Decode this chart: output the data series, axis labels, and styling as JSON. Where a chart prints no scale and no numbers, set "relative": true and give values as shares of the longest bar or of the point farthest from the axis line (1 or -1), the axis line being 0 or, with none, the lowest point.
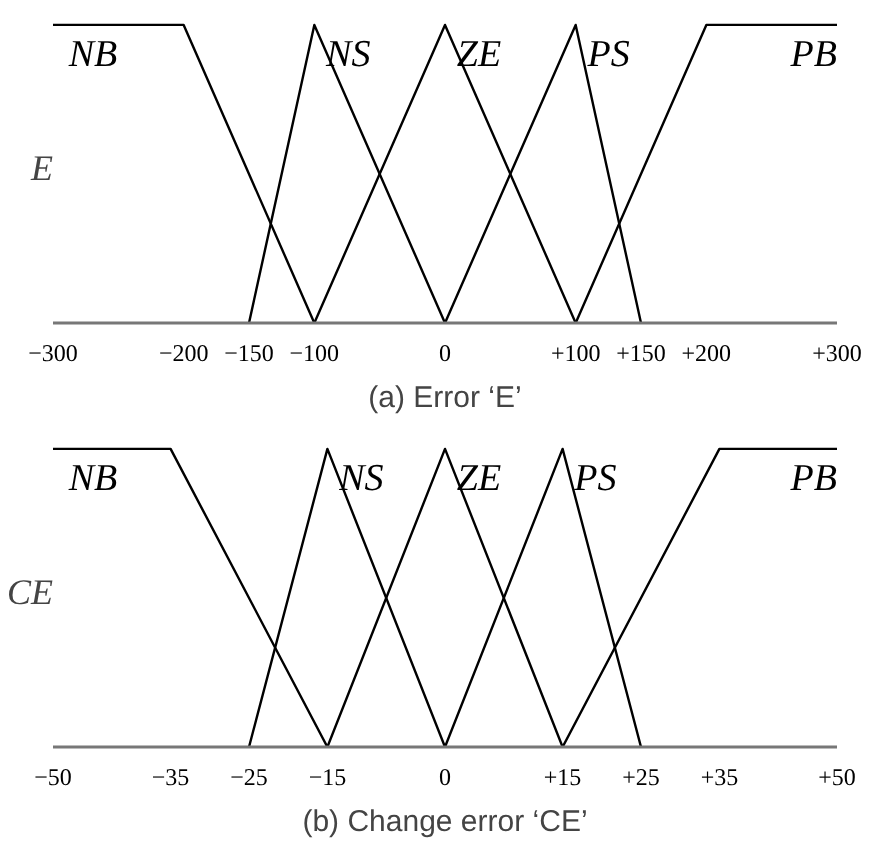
{
  "chart_data": [
    {
      "type": "line",
      "title": "(a) Error ‘E’",
      "ylabel": "E",
      "relative": true,
      "xlim": [
        -300,
        300
      ],
      "xticks": [
        {
          "value": -300,
          "label": "−300"
        },
        {
          "value": -200,
          "label": "−200"
        },
        {
          "value": -150,
          "label": "−150"
        },
        {
          "value": -100,
          "label": "−100"
        },
        0,
        {
          "value": 100,
          "label": "+100"
        },
        {
          "value": 150,
          "label": "+150"
        },
        {
          "value": 200,
          "label": "+200"
        },
        {
          "value": 300,
          "label": "+300"
        }
      ],
      "series": [
        {
          "name": "NB",
          "color": "#000000",
          "x": [
            -300,
            -200,
            -100
          ],
          "values": [
            1,
            1,
            0
          ]
        },
        {
          "name": "NS",
          "color": "#000000",
          "x": [
            -150,
            -100,
            0
          ],
          "values": [
            0,
            1,
            0
          ]
        },
        {
          "name": "ZE",
          "color": "#000000",
          "x": [
            -100,
            0,
            100
          ],
          "values": [
            0,
            1,
            0
          ]
        },
        {
          "name": "PS",
          "color": "#000000",
          "x": [
            0,
            100,
            150
          ],
          "values": [
            0,
            1,
            0
          ]
        },
        {
          "name": "PB",
          "color": "#000000",
          "x": [
            100,
            200,
            300
          ],
          "values": [
            0,
            1,
            1
          ]
        }
      ]
    },
    {
      "type": "line",
      "title": "(b) Change error ‘CE’",
      "ylabel": "CE",
      "relative": true,
      "xlim": [
        -50,
        50
      ],
      "xticks": [
        {
          "value": -50,
          "label": "−50"
        },
        {
          "value": -35,
          "label": "−35"
        },
        {
          "value": -25,
          "label": "−25"
        },
        {
          "value": -15,
          "label": "−15"
        },
        0,
        {
          "value": 15,
          "label": "+15"
        },
        {
          "value": 25,
          "label": "+25"
        },
        {
          "value": 35,
          "label": "+35"
        },
        {
          "value": 50,
          "label": "+50"
        }
      ],
      "series": [
        {
          "name": "NB",
          "color": "#000000",
          "x": [
            -50,
            -35,
            -15
          ],
          "values": [
            1,
            1,
            0
          ]
        },
        {
          "name": "NS",
          "color": "#000000",
          "x": [
            -25,
            -15,
            0
          ],
          "values": [
            0,
            1,
            0
          ]
        },
        {
          "name": "ZE",
          "color": "#000000",
          "x": [
            -15,
            0,
            15
          ],
          "values": [
            0,
            1,
            0
          ]
        },
        {
          "name": "PS",
          "color": "#000000",
          "x": [
            0,
            15,
            25
          ],
          "values": [
            0,
            1,
            0
          ]
        },
        {
          "name": "PB",
          "color": "#000000",
          "x": [
            15,
            35,
            50
          ],
          "values": [
            0,
            1,
            1
          ]
        }
      ]
    }
  ]
}
